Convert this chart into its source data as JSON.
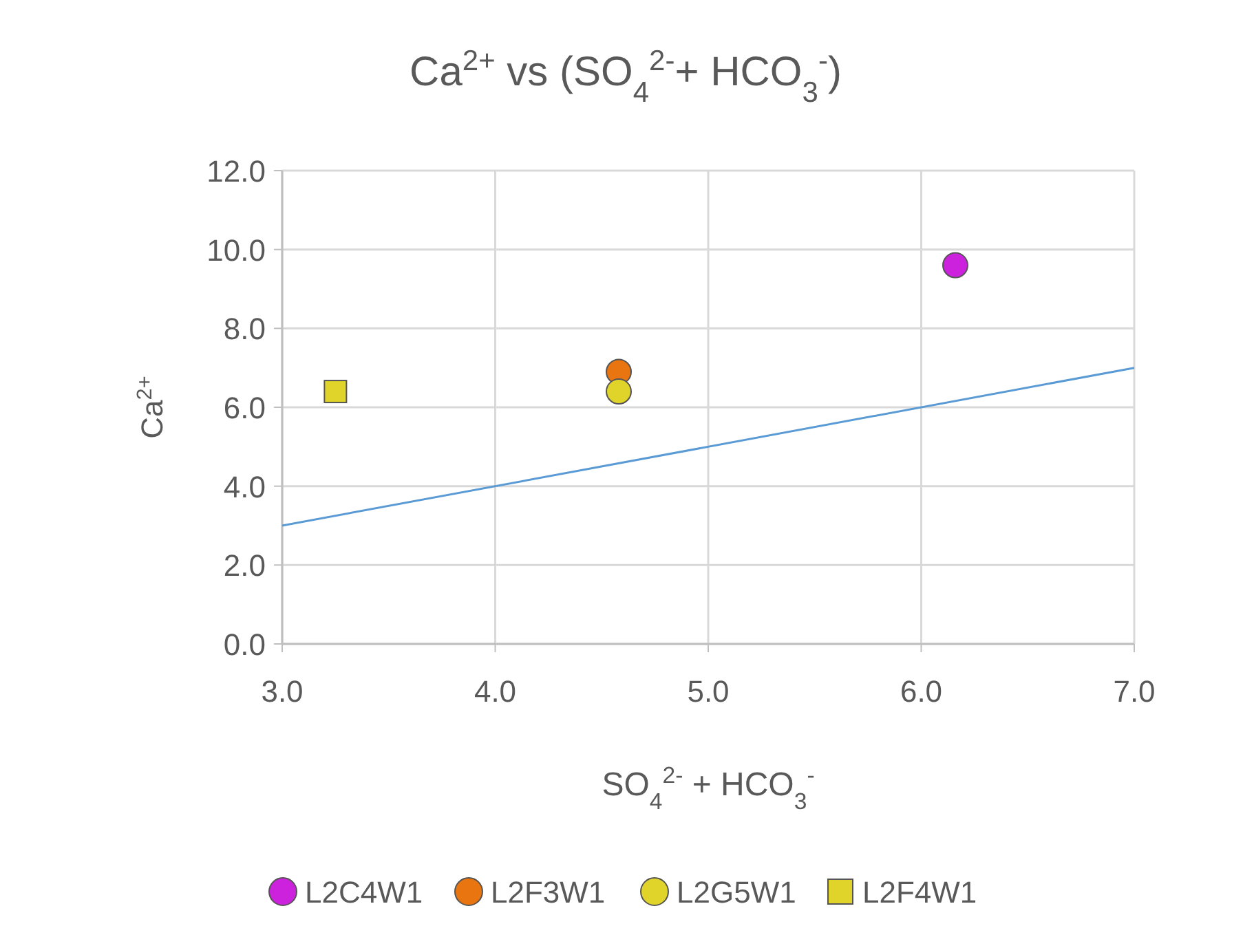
{
  "chart_data": {
    "type": "scatter",
    "title": "Ca$^{2+}$ vs (SO$_{4}$$^{2-}$+ HCO$_{3}$$^{-}$)",
    "xlabel": "SO$_{4}$$^{2-}$ + HCO$_{3}$$^{-}$",
    "ylabel": "Ca$^{2+}$",
    "xlim": [
      3,
      7
    ],
    "xticks": [
      {
        "value": 3,
        "label": "3.0"
      },
      {
        "value": 4,
        "label": "4.0"
      },
      {
        "value": 5,
        "label": "5.0"
      },
      {
        "value": 6,
        "label": "6.0"
      },
      {
        "value": 7,
        "label": "7.0"
      }
    ],
    "ylim": [
      0,
      12
    ],
    "yticks": [
      {
        "value": 0,
        "label": "0.0"
      },
      {
        "value": 2,
        "label": "2.0"
      },
      {
        "value": 4,
        "label": "4.0"
      },
      {
        "value": 6,
        "label": "6.0"
      },
      {
        "value": 8,
        "label": "8.0"
      },
      {
        "value": 10,
        "label": "10.0"
      },
      {
        "value": 12,
        "label": "12.0"
      }
    ],
    "grid": true,
    "legend": "bottom",
    "series": [
      {
        "type": "line",
        "color": "#5b9bd5",
        "x": [
          3,
          7
        ],
        "values": [
          3,
          7
        ],
        "marker": "none"
      },
      {
        "name": "L2C4W1",
        "color": "#cc22dd",
        "x": [
          6.16
        ],
        "values": [
          9.6
        ],
        "marker": "circle"
      },
      {
        "name": "L2F3W1",
        "color": "#e8750f",
        "x": [
          4.58
        ],
        "values": [
          6.9
        ],
        "marker": "circle"
      },
      {
        "name": "L2G5W1",
        "color": "#e0d42a",
        "x": [
          4.58
        ],
        "values": [
          6.4
        ],
        "marker": "circle"
      },
      {
        "name": "L2F4W1",
        "color": "#e0d42a",
        "x": [
          3.25
        ],
        "values": [
          6.4
        ],
        "marker": "square"
      }
    ]
  }
}
